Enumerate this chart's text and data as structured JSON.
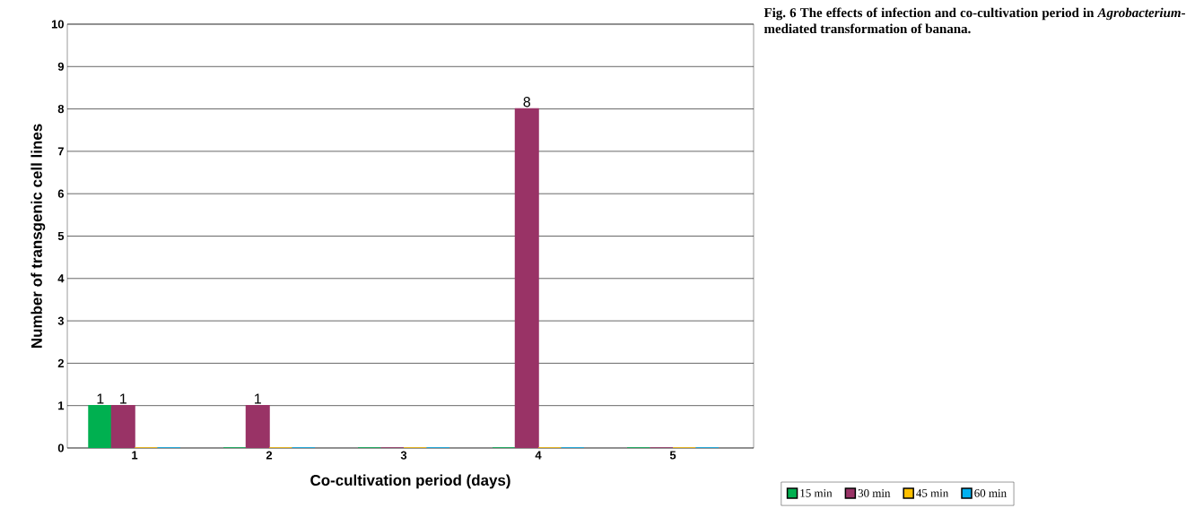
{
  "chart_data": {
    "type": "bar",
    "title": "Fig. 6 The effects of infection and co-cultivation period in *Agrobacterium*-mediated transformation of banana.",
    "xlabel": "Co-cultivation period (days)",
    "ylabel": "Number of transgenic cell lines",
    "categories": [
      "1",
      "2",
      "3",
      "4",
      "5"
    ],
    "series": [
      {
        "name": "15 min",
        "color": "#00b050",
        "values": [
          1,
          0,
          0,
          0,
          0
        ],
        "value_labels": [
          "1",
          null,
          null,
          null,
          null
        ]
      },
      {
        "name": "30 min",
        "color": "#993366",
        "values": [
          1,
          1,
          0,
          8,
          0
        ],
        "value_labels": [
          "1",
          "1",
          null,
          "8",
          null
        ]
      },
      {
        "name": "45 min",
        "color": "#ffc000",
        "values": [
          0,
          0,
          0,
          0,
          0
        ],
        "value_labels": [
          null,
          null,
          null,
          null,
          null
        ]
      },
      {
        "name": "60 min",
        "color": "#00b0f0",
        "values": [
          0,
          0,
          0,
          0,
          0
        ],
        "value_labels": [
          null,
          null,
          null,
          null,
          null
        ]
      }
    ],
    "ylim": [
      0,
      10
    ],
    "yticks": [
      0,
      1,
      2,
      3,
      4,
      5,
      6,
      7,
      8,
      9,
      10
    ],
    "grid": "y",
    "legend": "bottom right"
  }
}
